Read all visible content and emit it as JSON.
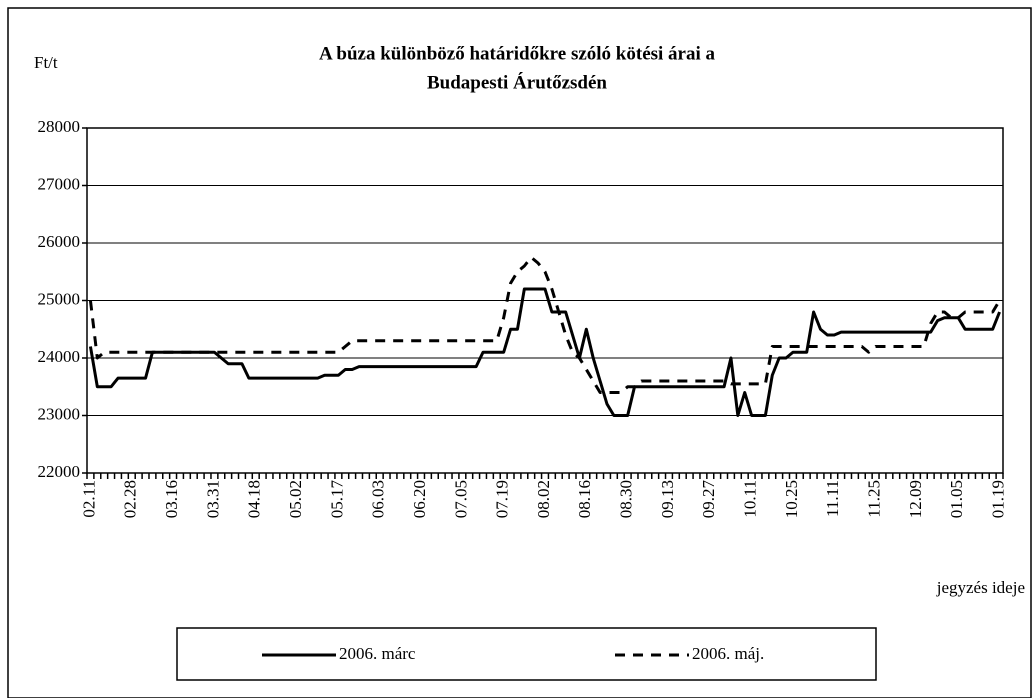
{
  "chart_data": {
    "type": "line",
    "title": "A búza különböző határidőkre szóló kötési árai a",
    "subtitle": "Budapesti Árutőzsdén",
    "y_label": "Ft/t",
    "x_label": "jegyzés ideje",
    "categories": [
      "02.11",
      null,
      null,
      null,
      null,
      null,
      "02.28",
      null,
      null,
      null,
      null,
      null,
      "03.16",
      null,
      null,
      null,
      null,
      null,
      "03.31",
      null,
      null,
      null,
      null,
      null,
      "04.18",
      null,
      null,
      null,
      null,
      null,
      "05.02",
      null,
      null,
      null,
      null,
      null,
      "05.17",
      null,
      null,
      null,
      null,
      null,
      "06.03",
      null,
      null,
      null,
      null,
      null,
      "06.20",
      null,
      null,
      null,
      null,
      null,
      "07.05",
      null,
      null,
      null,
      null,
      null,
      "07.19",
      null,
      null,
      null,
      null,
      null,
      "08.02",
      null,
      null,
      null,
      null,
      null,
      "08.16",
      null,
      null,
      null,
      null,
      null,
      "08.30",
      null,
      null,
      null,
      null,
      null,
      "09.13",
      null,
      null,
      null,
      null,
      null,
      "09.27",
      null,
      null,
      null,
      null,
      null,
      "10.11",
      null,
      null,
      null,
      null,
      null,
      "10.25",
      null,
      null,
      null,
      null,
      null,
      "11.11",
      null,
      null,
      null,
      null,
      null,
      "11.25",
      null,
      null,
      null,
      null,
      null,
      "12.09",
      null,
      null,
      null,
      null,
      null,
      "01.05",
      null,
      null,
      null,
      null,
      null,
      "01.19"
    ],
    "series": [
      {
        "name": "2006. márc",
        "color": "#000000",
        "dash": false,
        "values": [
          24200,
          23500,
          23500,
          23500,
          23650,
          23650,
          23650,
          23650,
          23650,
          24100,
          24100,
          24100,
          24100,
          24100,
          24100,
          24100,
          24100,
          24100,
          24100,
          24000,
          23900,
          23900,
          23900,
          23650,
          23650,
          23650,
          23650,
          23650,
          23650,
          23650,
          23650,
          23650,
          23650,
          23650,
          23700,
          23700,
          23700,
          23800,
          23800,
          23850,
          23850,
          23850,
          23850,
          23850,
          23850,
          23850,
          23850,
          23850,
          23850,
          23850,
          23850,
          23850,
          23850,
          23850,
          23850,
          23850,
          23850,
          24100,
          24100,
          24100,
          24100,
          24500,
          24500,
          25200,
          25200,
          25200,
          25200,
          24800,
          24800,
          24800,
          24400,
          24000,
          24500,
          24000,
          23600,
          23200,
          23000,
          23000,
          23000,
          23500,
          23500,
          23500,
          23500,
          23500,
          23500,
          23500,
          23500,
          23500,
          23500,
          23500,
          23500,
          23500,
          23500,
          24000,
          23000,
          23400,
          23000,
          23000,
          23000,
          23700,
          24000,
          24000,
          24100,
          24100,
          24100,
          24800,
          24500,
          24400,
          24400,
          24450,
          24450,
          24450,
          24450,
          24450,
          24450,
          24450,
          24450,
          24450,
          24450,
          24450,
          24450,
          24450,
          24450,
          24650,
          24700,
          24700,
          24700,
          24500,
          24500,
          24500,
          24500,
          24500,
          24800
        ]
      },
      {
        "name": "2006. máj.",
        "color": "#000000",
        "dash": true,
        "values": [
          25000,
          24000,
          24100,
          24100,
          24100,
          24100,
          24100,
          24100,
          24100,
          24100,
          24100,
          24100,
          24100,
          24100,
          24100,
          24100,
          24100,
          24100,
          24100,
          24100,
          24100,
          24100,
          24100,
          24100,
          24100,
          24100,
          24100,
          24100,
          24100,
          24100,
          24100,
          24100,
          24100,
          24100,
          24100,
          24100,
          24100,
          24200,
          24300,
          24300,
          24300,
          24300,
          24300,
          24300,
          24300,
          24300,
          24300,
          24300,
          24300,
          24300,
          24300,
          24300,
          24300,
          24300,
          24300,
          24300,
          24300,
          24300,
          24300,
          24300,
          24700,
          25300,
          25500,
          25600,
          25750,
          25650,
          25500,
          25200,
          24800,
          24400,
          24100,
          24000,
          23800,
          23600,
          23400,
          23400,
          23400,
          23400,
          23500,
          23500,
          23600,
          23600,
          23600,
          23600,
          23600,
          23600,
          23600,
          23600,
          23600,
          23600,
          23600,
          23600,
          23600,
          23550,
          23550,
          23550,
          23550,
          23550,
          23550,
          24200,
          24200,
          24200,
          24200,
          24200,
          24200,
          24200,
          24200,
          24200,
          24200,
          24200,
          24200,
          24200,
          24200,
          24100,
          24200,
          24200,
          24200,
          24200,
          24200,
          24200,
          24200,
          24200,
          24600,
          24800,
          24800,
          24700,
          24700,
          24800,
          24800,
          24800,
          24800,
          24800,
          25000
        ]
      }
    ],
    "ylim": [
      22000,
      28000
    ],
    "yticks": [
      22000,
      23000,
      24000,
      25000,
      26000,
      27000,
      28000
    ],
    "grid": true,
    "legend": "bottom"
  }
}
